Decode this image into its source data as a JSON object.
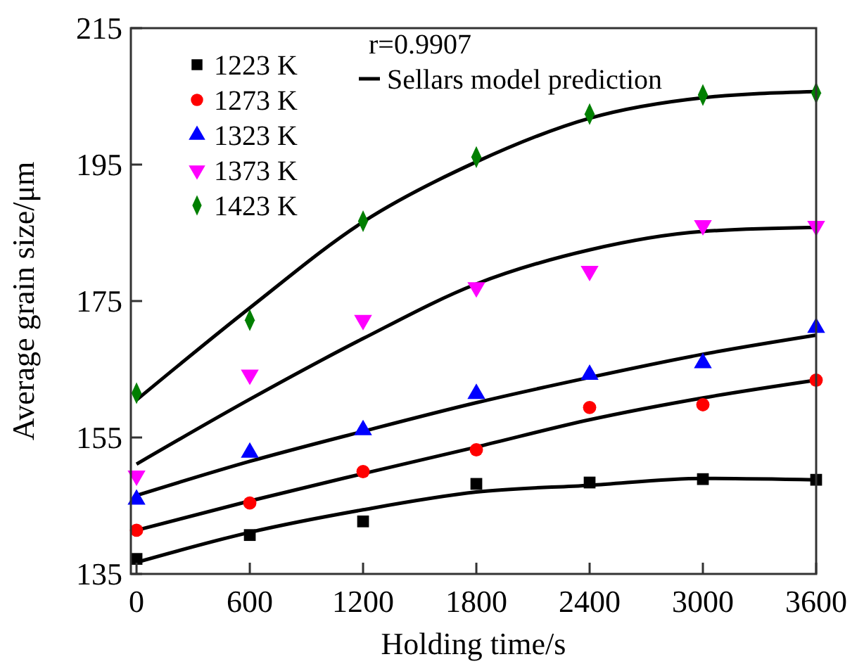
{
  "chart_data": {
    "type": "scatter",
    "xlabel": "Holding time/s",
    "ylabel": "Average grain size/μm",
    "annotations": [
      "r=0.9907"
    ],
    "xlim": [
      -30,
      3600
    ],
    "ylim": [
      135,
      215
    ],
    "xticks": [
      0,
      600,
      1200,
      1800,
      2400,
      3000,
      3600
    ],
    "yticks": [
      135,
      155,
      175,
      195,
      215
    ],
    "grid": false,
    "legend": "top left",
    "x": [
      0,
      600,
      1200,
      1800,
      2400,
      3000,
      3600
    ],
    "series": [
      {
        "name": "1223 K",
        "type": "scatter",
        "marker": "square",
        "color": "#000000",
        "values": [
          137.2,
          140.7,
          142.7,
          148.2,
          148.4,
          148.9,
          148.8
        ]
      },
      {
        "name": "1273 K",
        "type": "scatter",
        "marker": "circle",
        "color": "#ff0000",
        "values": [
          141.4,
          145.4,
          150.0,
          153.2,
          159.4,
          159.8,
          163.4
        ]
      },
      {
        "name": "1323 K",
        "type": "scatter",
        "marker": "triangle",
        "color": "#0000ff",
        "values": [
          145.9,
          152.8,
          156.1,
          161.4,
          164.2,
          165.9,
          171.1
        ]
      },
      {
        "name": "1373 K",
        "type": "scatter",
        "marker": "triangle-down",
        "color": "#ff00ff",
        "values": [
          149.4,
          164.2,
          172.2,
          177.0,
          179.4,
          186.1,
          186.0
        ]
      },
      {
        "name": "1423 K",
        "type": "scatter",
        "marker": "diamond",
        "color": "#007f00",
        "values": [
          161.5,
          172.2,
          186.7,
          196.1,
          202.4,
          205.2,
          205.5
        ]
      },
      {
        "name": "Sellars model prediction",
        "type": "line",
        "marker": "none",
        "line_style": "solid",
        "color": "#000000",
        "values": [
          136.7,
          141.1,
          144.4,
          147.0,
          148.0,
          149.0,
          148.8
        ]
      },
      {
        "type": "line",
        "marker": "none",
        "line_style": "solid",
        "color": "#000000",
        "values": [
          141.4,
          145.7,
          149.7,
          153.6,
          157.6,
          160.8,
          163.4
        ]
      },
      {
        "type": "line",
        "marker": "none",
        "line_style": "solid",
        "color": "#000000",
        "values": [
          146.5,
          151.5,
          155.9,
          160.1,
          163.8,
          167.2,
          170.0
        ]
      },
      {
        "type": "line",
        "marker": "none",
        "line_style": "solid",
        "color": "#000000",
        "values": [
          151.1,
          160.6,
          169.5,
          177.5,
          182.5,
          185.2,
          185.8
        ]
      },
      {
        "type": "line",
        "marker": "none",
        "line_style": "solid",
        "color": "#000000",
        "values": [
          160.5,
          174.0,
          186.6,
          195.4,
          201.8,
          204.8,
          205.7
        ]
      }
    ]
  }
}
